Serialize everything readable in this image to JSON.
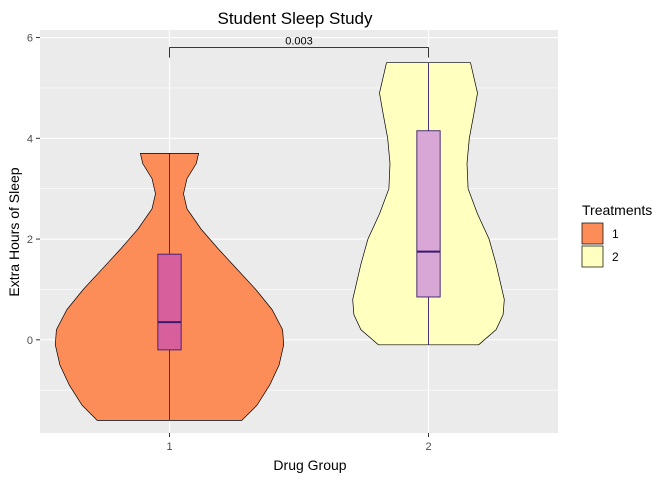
{
  "chart_data": {
    "type": "violin",
    "title": "Student Sleep Study",
    "xlabel": "Drug Group",
    "ylabel": "Extra Hours of Sleep",
    "categories": [
      "1",
      "2"
    ],
    "ylim": [
      -1.85,
      6.15
    ],
    "yticks": [
      0,
      2,
      4,
      6
    ],
    "grid": true,
    "legend": {
      "title": "Treatments",
      "placement": "right",
      "entries": [
        {
          "label": "1",
          "color": "#fc8d59"
        },
        {
          "label": "2",
          "color": "#ffffbf"
        }
      ]
    },
    "series": [
      {
        "category": "1",
        "fill": "#fc8d59",
        "box_fill": "#d7609c",
        "min": -1.6,
        "q1": -0.2,
        "median": 0.35,
        "q3": 1.7,
        "max": 3.7,
        "density": [
          [
            -1.6,
            0.62
          ],
          [
            -1.3,
            0.75
          ],
          [
            -0.9,
            0.86
          ],
          [
            -0.5,
            0.94
          ],
          [
            -0.1,
            0.98
          ],
          [
            0.2,
            0.97
          ],
          [
            0.6,
            0.88
          ],
          [
            1.0,
            0.74
          ],
          [
            1.4,
            0.58
          ],
          [
            1.8,
            0.42
          ],
          [
            2.2,
            0.27
          ],
          [
            2.6,
            0.15
          ],
          [
            2.9,
            0.12
          ],
          [
            3.2,
            0.15
          ],
          [
            3.5,
            0.23
          ],
          [
            3.7,
            0.25
          ]
        ]
      },
      {
        "category": "2",
        "fill": "#ffffbf",
        "box_fill": "#d9a7d6",
        "min": -0.1,
        "q1": 0.85,
        "median": 1.75,
        "q3": 4.15,
        "max": 5.5,
        "density": [
          [
            -0.1,
            0.43
          ],
          [
            0.2,
            0.58
          ],
          [
            0.5,
            0.64
          ],
          [
            0.8,
            0.65
          ],
          [
            1.1,
            0.62
          ],
          [
            1.5,
            0.58
          ],
          [
            2.0,
            0.52
          ],
          [
            2.5,
            0.42
          ],
          [
            3.0,
            0.34
          ],
          [
            3.5,
            0.33
          ],
          [
            4.0,
            0.35
          ],
          [
            4.5,
            0.39
          ],
          [
            4.9,
            0.42
          ],
          [
            5.2,
            0.39
          ],
          [
            5.5,
            0.36
          ]
        ]
      }
    ],
    "annotation": {
      "text": "0.003",
      "from": "1",
      "to": "2",
      "y": 5.8
    }
  }
}
